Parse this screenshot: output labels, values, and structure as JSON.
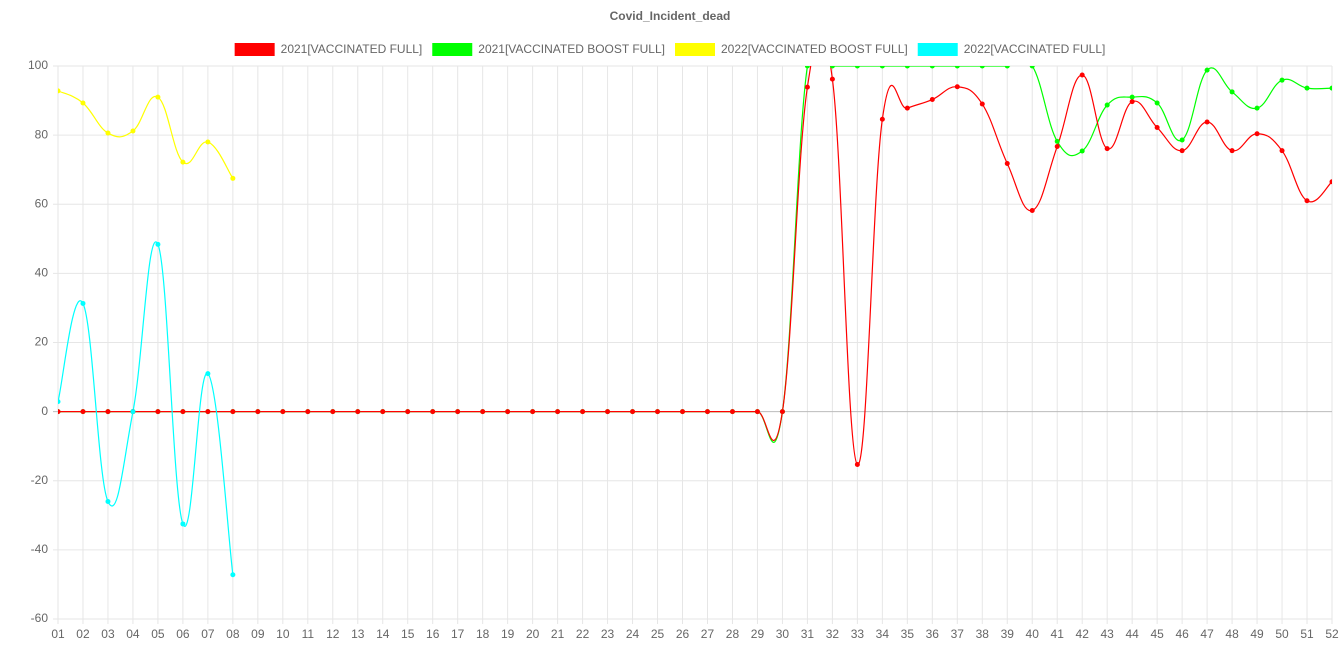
{
  "chart_data": {
    "type": "line",
    "title": "Covid_Incident_dead",
    "categories": [
      "01",
      "02",
      "03",
      "04",
      "05",
      "06",
      "07",
      "08",
      "09",
      "10",
      "11",
      "12",
      "13",
      "14",
      "15",
      "16",
      "17",
      "18",
      "19",
      "20",
      "21",
      "22",
      "23",
      "24",
      "25",
      "26",
      "27",
      "28",
      "29",
      "30",
      "31",
      "32",
      "33",
      "34",
      "35",
      "36",
      "37",
      "38",
      "39",
      "40",
      "41",
      "42",
      "43",
      "44",
      "45",
      "46",
      "47",
      "48",
      "49",
      "50",
      "51",
      "52"
    ],
    "series": [
      {
        "name": "2021[VACCINATED FULL]",
        "color": "#ff0000",
        "values": [
          0,
          0,
          0,
          0,
          0,
          0,
          0,
          0,
          0,
          0,
          0,
          0,
          0,
          0,
          0,
          0,
          0,
          0,
          0,
          0,
          0,
          0,
          0,
          0,
          0,
          0,
          0,
          0,
          0,
          0,
          93.9,
          96.2,
          -15.3,
          84.6,
          87.8,
          90.3,
          94,
          89,
          71.8,
          58.2,
          76.7,
          97.4,
          76.1,
          89.7,
          82.2,
          75.5,
          83.8,
          75.5,
          80.4,
          75.5,
          61,
          66.5
        ]
      },
      {
        "name": "2021[VACCINATED BOOST FULL]",
        "color": "#00ff00",
        "values": [
          0,
          0,
          0,
          0,
          0,
          0,
          0,
          0,
          0,
          0,
          0,
          0,
          0,
          0,
          0,
          0,
          0,
          0,
          0,
          0,
          0,
          0,
          0,
          0,
          0,
          0,
          0,
          0,
          0,
          0,
          100,
          100,
          100,
          100,
          100,
          100,
          100,
          100,
          100,
          100,
          78.2,
          75.4,
          88.7,
          91,
          89.3,
          78.6,
          98.8,
          92.5,
          87.8,
          95.9,
          93.6,
          93.6
        ]
      },
      {
        "name": "2022[VACCINATED BOOST FULL]",
        "color": "#ffff00",
        "values": [
          92.8,
          89.3,
          80.6,
          81.2,
          91,
          72.2,
          78,
          67.5,
          null,
          null,
          null,
          null,
          null,
          null,
          null,
          null,
          null,
          null,
          null,
          null,
          null,
          null,
          null,
          null,
          null,
          null,
          null,
          null,
          null,
          null,
          null,
          null,
          null,
          null,
          null,
          null,
          null,
          null,
          null,
          null,
          null,
          null,
          null,
          null,
          null,
          null,
          null,
          null,
          null,
          null,
          null,
          null
        ]
      },
      {
        "name": "2022[VACCINATED FULL]",
        "color": "#00ffff",
        "values": [
          2.9,
          31.3,
          -26,
          0,
          48.4,
          -32.5,
          11,
          -47.2,
          null,
          null,
          null,
          null,
          null,
          null,
          null,
          null,
          null,
          null,
          null,
          null,
          null,
          null,
          null,
          null,
          null,
          null,
          null,
          null,
          null,
          null,
          null,
          null,
          null,
          null,
          null,
          null,
          null,
          null,
          null,
          null,
          null,
          null,
          null,
          null,
          null,
          null,
          null,
          null,
          null,
          null,
          null,
          null
        ]
      }
    ],
    "ylim": [
      -60,
      100
    ],
    "yticks": [
      -60,
      -40,
      -20,
      0,
      20,
      40,
      60,
      80,
      100
    ],
    "grid": true,
    "legend": "top"
  }
}
